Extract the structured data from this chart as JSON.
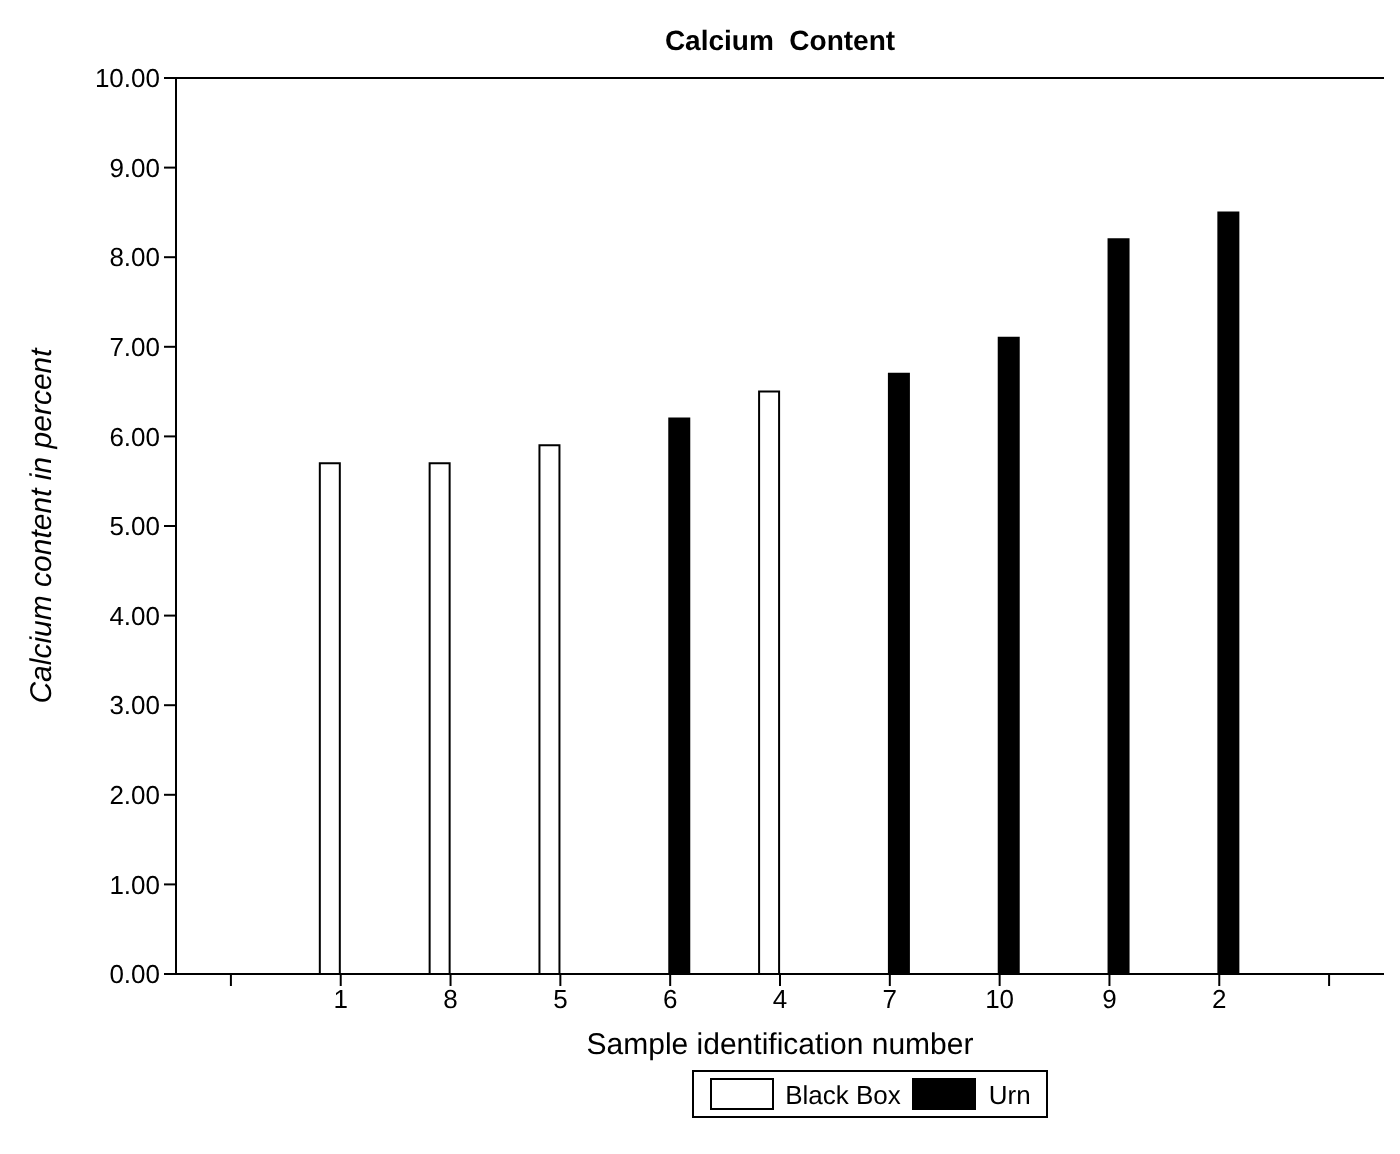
{
  "chart_data": {
    "type": "bar",
    "title": "Calcium  Content",
    "xlabel": "Sample identification number",
    "ylabel": "Calcium content in percent",
    "categories": [
      null,
      "1",
      "8",
      "5",
      "6",
      "4",
      "7",
      "10",
      "9",
      "2",
      null
    ],
    "series": [
      {
        "name": "Black Box",
        "color": "#ffffff",
        "values": [
          null,
          5.7,
          5.7,
          5.9,
          null,
          6.5,
          null,
          null,
          null,
          null,
          null
        ]
      },
      {
        "name": "Urn",
        "color": "#000000",
        "values": [
          null,
          null,
          null,
          null,
          6.2,
          null,
          6.7,
          7.1,
          8.2,
          8.5,
          null
        ]
      }
    ],
    "ylim": [
      0,
      10
    ],
    "yticks": [
      {
        "value": 0,
        "label": "0.00"
      },
      {
        "value": 1,
        "label": "1.00"
      },
      {
        "value": 2,
        "label": "2.00"
      },
      {
        "value": 3,
        "label": "3.00"
      },
      {
        "value": 4,
        "label": "4.00"
      },
      {
        "value": 5,
        "label": "5.00"
      },
      {
        "value": 6,
        "label": "6.00"
      },
      {
        "value": 7,
        "label": "7.00"
      },
      {
        "value": 8,
        "label": "8.00"
      },
      {
        "value": 9,
        "label": "9.00"
      },
      {
        "value": 10,
        "label": "10.00"
      }
    ],
    "grid": false,
    "legend": "bottom"
  }
}
